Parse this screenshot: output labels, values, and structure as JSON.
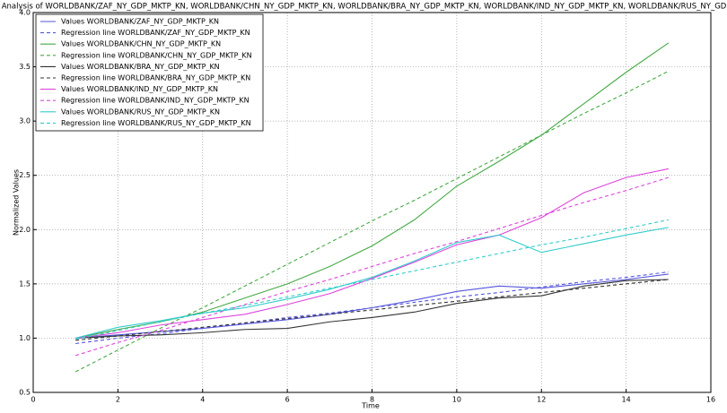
{
  "chart_data": {
    "type": "line",
    "title": "Regression Analysis of WORLDBANK/ZAF_NY_GDP_MKTP_KN, WORLDBANK/CHN_NY_GDP_MKTP_KN, WORLDBANK/BRA_NY_GDP_MKTP_KN, WORLDBANK/IND_NY_GDP_MKTP_KN, WORLDBANK/RUS_NY_GDP_MKTP_KN",
    "x_label": "Time",
    "y_label": "Normalized Values",
    "x": [
      1,
      2,
      3,
      4,
      5,
      6,
      7,
      8,
      9,
      10,
      11,
      12,
      13,
      14,
      15
    ],
    "xlim": [
      0,
      16
    ],
    "xticks": [
      0,
      2,
      4,
      6,
      8,
      10,
      12,
      14,
      16
    ],
    "ylim": [
      0.5,
      4.0
    ],
    "yticks": [
      0.5,
      {
        "value": 1,
        "label": "1.0"
      },
      1.5,
      {
        "value": 2,
        "label": "2.0"
      },
      2.5,
      {
        "value": 3,
        "label": "3.0"
      },
      3.5,
      {
        "value": 4,
        "label": "4.0"
      }
    ],
    "grid": true,
    "legend_position": "upper-left",
    "series": [
      {
        "name": "Values WORLDBANK/ZAF_NY_GDP_MKTP_KN",
        "color": "#5555dd",
        "linestyle": "solid",
        "values": [
          1.0,
          1.03,
          1.06,
          1.09,
          1.13,
          1.17,
          1.22,
          1.28,
          1.35,
          1.43,
          1.48,
          1.46,
          1.5,
          1.54,
          1.59
        ]
      },
      {
        "name": "Regression line WORLDBANK/ZAF_NY_GDP_MKTP_KN",
        "color": "#5555dd",
        "linestyle": "dashed",
        "values": [
          0.95,
          1.0,
          1.04,
          1.09,
          1.14,
          1.19,
          1.23,
          1.28,
          1.33,
          1.38,
          1.42,
          1.47,
          1.52,
          1.56,
          1.61
        ]
      },
      {
        "name": "Values WORLDBANK/CHN_NY_GDP_MKTP_KN",
        "color": "#44aa44",
        "linestyle": "solid",
        "values": [
          1.0,
          1.08,
          1.15,
          1.24,
          1.37,
          1.5,
          1.66,
          1.85,
          2.09,
          2.4,
          2.63,
          2.87,
          3.16,
          3.45,
          3.72
        ]
      },
      {
        "name": "Regression line WORLDBANK/CHN_NY_GDP_MKTP_KN",
        "color": "#44aa44",
        "linestyle": "dashed",
        "values": [
          0.69,
          0.89,
          1.09,
          1.28,
          1.48,
          1.68,
          1.88,
          2.08,
          2.27,
          2.47,
          2.67,
          2.87,
          3.07,
          3.26,
          3.46
        ]
      },
      {
        "name": "Values WORLDBANK/BRA_NY_GDP_MKTP_KN",
        "color": "#333333",
        "linestyle": "solid",
        "values": [
          1.0,
          1.02,
          1.03,
          1.05,
          1.08,
          1.09,
          1.15,
          1.19,
          1.24,
          1.32,
          1.37,
          1.39,
          1.48,
          1.53,
          1.54
        ]
      },
      {
        "name": "Regression line WORLDBANK/BRA_NY_GDP_MKTP_KN",
        "color": "#333333",
        "linestyle": "dashed",
        "values": [
          0.98,
          1.02,
          1.06,
          1.1,
          1.14,
          1.18,
          1.22,
          1.26,
          1.3,
          1.34,
          1.38,
          1.42,
          1.46,
          1.5,
          1.54
        ]
      },
      {
        "name": "Values WORLDBANK/IND_NY_GDP_MKTP_KN",
        "color": "#dd44dd",
        "linestyle": "solid",
        "values": [
          1.0,
          1.05,
          1.12,
          1.17,
          1.22,
          1.31,
          1.41,
          1.55,
          1.7,
          1.86,
          1.95,
          2.11,
          2.34,
          2.48,
          2.56
        ]
      },
      {
        "name": "Regression line WORLDBANK/IND_NY_GDP_MKTP_KN",
        "color": "#dd44dd",
        "linestyle": "dashed",
        "values": [
          0.84,
          0.96,
          1.07,
          1.19,
          1.31,
          1.43,
          1.54,
          1.66,
          1.78,
          1.89,
          2.01,
          2.13,
          2.25,
          2.36,
          2.48
        ]
      },
      {
        "name": "Values WORLDBANK/RUS_NY_GDP_MKTP_KN",
        "color": "#33cccc",
        "linestyle": "solid",
        "values": [
          1.0,
          1.1,
          1.16,
          1.23,
          1.28,
          1.36,
          1.45,
          1.56,
          1.71,
          1.88,
          1.95,
          1.79,
          1.87,
          1.95,
          2.02
        ]
      },
      {
        "name": "Regression line WORLDBANK/RUS_NY_GDP_MKTP_KN",
        "color": "#33cccc",
        "linestyle": "dashed",
        "values": [
          0.99,
          1.07,
          1.15,
          1.23,
          1.3,
          1.38,
          1.46,
          1.54,
          1.62,
          1.7,
          1.78,
          1.86,
          1.93,
          2.01,
          2.09
        ]
      }
    ]
  }
}
